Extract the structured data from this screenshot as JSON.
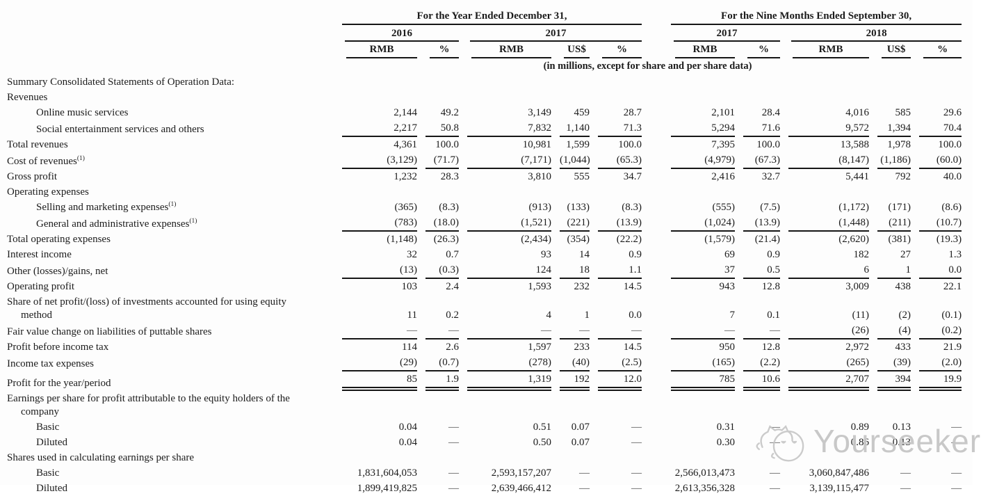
{
  "header": {
    "group1": "For the Year Ended December 31,",
    "group2": "For the Nine Months Ended September 30,",
    "years": [
      "2016",
      "2017",
      "2017",
      "2018"
    ],
    "columns": [
      "RMB",
      "%",
      "RMB",
      "US$",
      "%",
      "RMB",
      "%",
      "RMB",
      "US$",
      "%"
    ],
    "note": "(in millions, except for share and per share data)"
  },
  "table": {
    "rows": [
      {
        "label": "Summary Consolidated Statements of Operation Data:",
        "bold": true,
        "indent": 0,
        "values": []
      },
      {
        "label": "Revenues",
        "bold": true,
        "indent": 0,
        "values": []
      },
      {
        "label": "Online music services",
        "indent": 1,
        "values": [
          "2,144",
          "49.2",
          "3,149",
          "459",
          "28.7",
          "2,101",
          "28.4",
          "4,016",
          "585",
          "29.6"
        ]
      },
      {
        "label": "Social entertainment services and others",
        "indent": 1,
        "rule": 1,
        "values": [
          "2,217",
          "50.8",
          "7,832",
          "1,140",
          "71.3",
          "5,294",
          "71.6",
          "9,572",
          "1,394",
          "70.4"
        ]
      },
      {
        "label": "Total revenues",
        "bold": true,
        "values": [
          "4,361",
          "100.0",
          "10,981",
          "1,599",
          "100.0",
          "7,395",
          "100.0",
          "13,588",
          "1,978",
          "100.0"
        ]
      },
      {
        "label": "Cost of revenues",
        "sup": "(1)",
        "bold": true,
        "rule": 1,
        "values": [
          "(3,129)",
          "(71.7)",
          "(7,171)",
          "(1,044)",
          "(65.3)",
          "(4,979)",
          "(67.3)",
          "(8,147)",
          "(1,186)",
          "(60.0)"
        ]
      },
      {
        "label": "Gross profit",
        "bold": true,
        "values": [
          "1,232",
          "28.3",
          "3,810",
          "555",
          "34.7",
          "2,416",
          "32.7",
          "5,441",
          "792",
          "40.0"
        ]
      },
      {
        "label": "Operating expenses",
        "values": []
      },
      {
        "label": "Selling and marketing expenses",
        "sup": "(1)",
        "indent": 1,
        "values": [
          "(365)",
          "(8.3)",
          "(913)",
          "(133)",
          "(8.3)",
          "(555)",
          "(7.5)",
          "(1,172)",
          "(171)",
          "(8.6)"
        ]
      },
      {
        "label": "General and administrative expenses",
        "sup": "(1)",
        "indent": 1,
        "rule": 1,
        "values": [
          "(783)",
          "(18.0)",
          "(1,521)",
          "(221)",
          "(13.9)",
          "(1,024)",
          "(13.9)",
          "(1,448)",
          "(211)",
          "(10.7)"
        ]
      },
      {
        "label": "Total operating expenses",
        "bold": true,
        "values": [
          "(1,148)",
          "(26.3)",
          "(2,434)",
          "(354)",
          "(22.2)",
          "(1,579)",
          "(21.4)",
          "(2,620)",
          "(381)",
          "(19.3)"
        ]
      },
      {
        "label": "Interest income",
        "values": [
          "32",
          "0.7",
          "93",
          "14",
          "0.9",
          "69",
          "0.9",
          "182",
          "27",
          "1.3"
        ]
      },
      {
        "label": "Other (losses)/gains, net",
        "rule": 1,
        "values": [
          "(13)",
          "(0.3)",
          "124",
          "18",
          "1.1",
          "37",
          "0.5",
          "6",
          "1",
          "0.0"
        ]
      },
      {
        "label": "Operating profit",
        "bold": true,
        "values": [
          "103",
          "2.4",
          "1,593",
          "232",
          "14.5",
          "943",
          "12.8",
          "3,009",
          "438",
          "22.1"
        ]
      },
      {
        "label": "Share of net profit/(loss) of investments accounted for using equity",
        "label2": "method",
        "values": [
          "11",
          "0.2",
          "4",
          "1",
          "0.0",
          "7",
          "0.1",
          "(11)",
          "(2)",
          "(0.1)"
        ]
      },
      {
        "label": "Fair value change on liabilities of puttable shares",
        "rule": 1,
        "values": [
          "—",
          "—",
          "—",
          "—",
          "—",
          "—",
          "—",
          "(26)",
          "(4)",
          "(0.2)"
        ]
      },
      {
        "label": "Profit before income tax",
        "bold": true,
        "values": [
          "114",
          "2.6",
          "1,597",
          "233",
          "14.5",
          "950",
          "12.8",
          "2,972",
          "433",
          "21.9"
        ]
      },
      {
        "label": "Income tax expenses",
        "rule": 1,
        "values": [
          "(29)",
          "(0.7)",
          "(278)",
          "(40)",
          "(2.5)",
          "(165)",
          "(2.2)",
          "(265)",
          "(39)",
          "(2.0)"
        ]
      },
      {
        "label": "Profit for the year/period",
        "bold": true,
        "rule": 2,
        "values": [
          "85",
          "1.9",
          "1,319",
          "192",
          "12.0",
          "785",
          "10.6",
          "2,707",
          "394",
          "19.9"
        ]
      },
      {
        "label": "Earnings per share for profit attributable to the equity holders of the",
        "label2": "company",
        "values": []
      },
      {
        "label": "Basic",
        "indent": 1,
        "values": [
          "0.04",
          "—",
          "0.51",
          "0.07",
          "—",
          "0.31",
          "—",
          "0.89",
          "0.13",
          "—"
        ]
      },
      {
        "label": "Diluted",
        "indent": 1,
        "values": [
          "0.04",
          "—",
          "0.50",
          "0.07",
          "—",
          "0.30",
          "—",
          "0.86",
          "0.13",
          "—"
        ]
      },
      {
        "label": "Shares used in calculating earnings per share",
        "values": []
      },
      {
        "label": "Basic",
        "indent": 1,
        "values": [
          "1,831,604,053",
          "—",
          "2,593,157,207",
          "—",
          "—",
          "2,566,013,473",
          "—",
          "3,060,847,486",
          "—",
          "—"
        ]
      },
      {
        "label": "Diluted",
        "indent": 1,
        "values": [
          "1,899,419,825",
          "—",
          "2,639,466,412",
          "—",
          "—",
          "2,613,356,328",
          "—",
          "3,139,115,477",
          "—",
          "—"
        ]
      }
    ]
  },
  "watermark": {
    "brand": "Yourseeker"
  },
  "colors": {
    "rule": "#161616",
    "text": "#1b1b1b",
    "watermark": "#c6c6c6"
  }
}
